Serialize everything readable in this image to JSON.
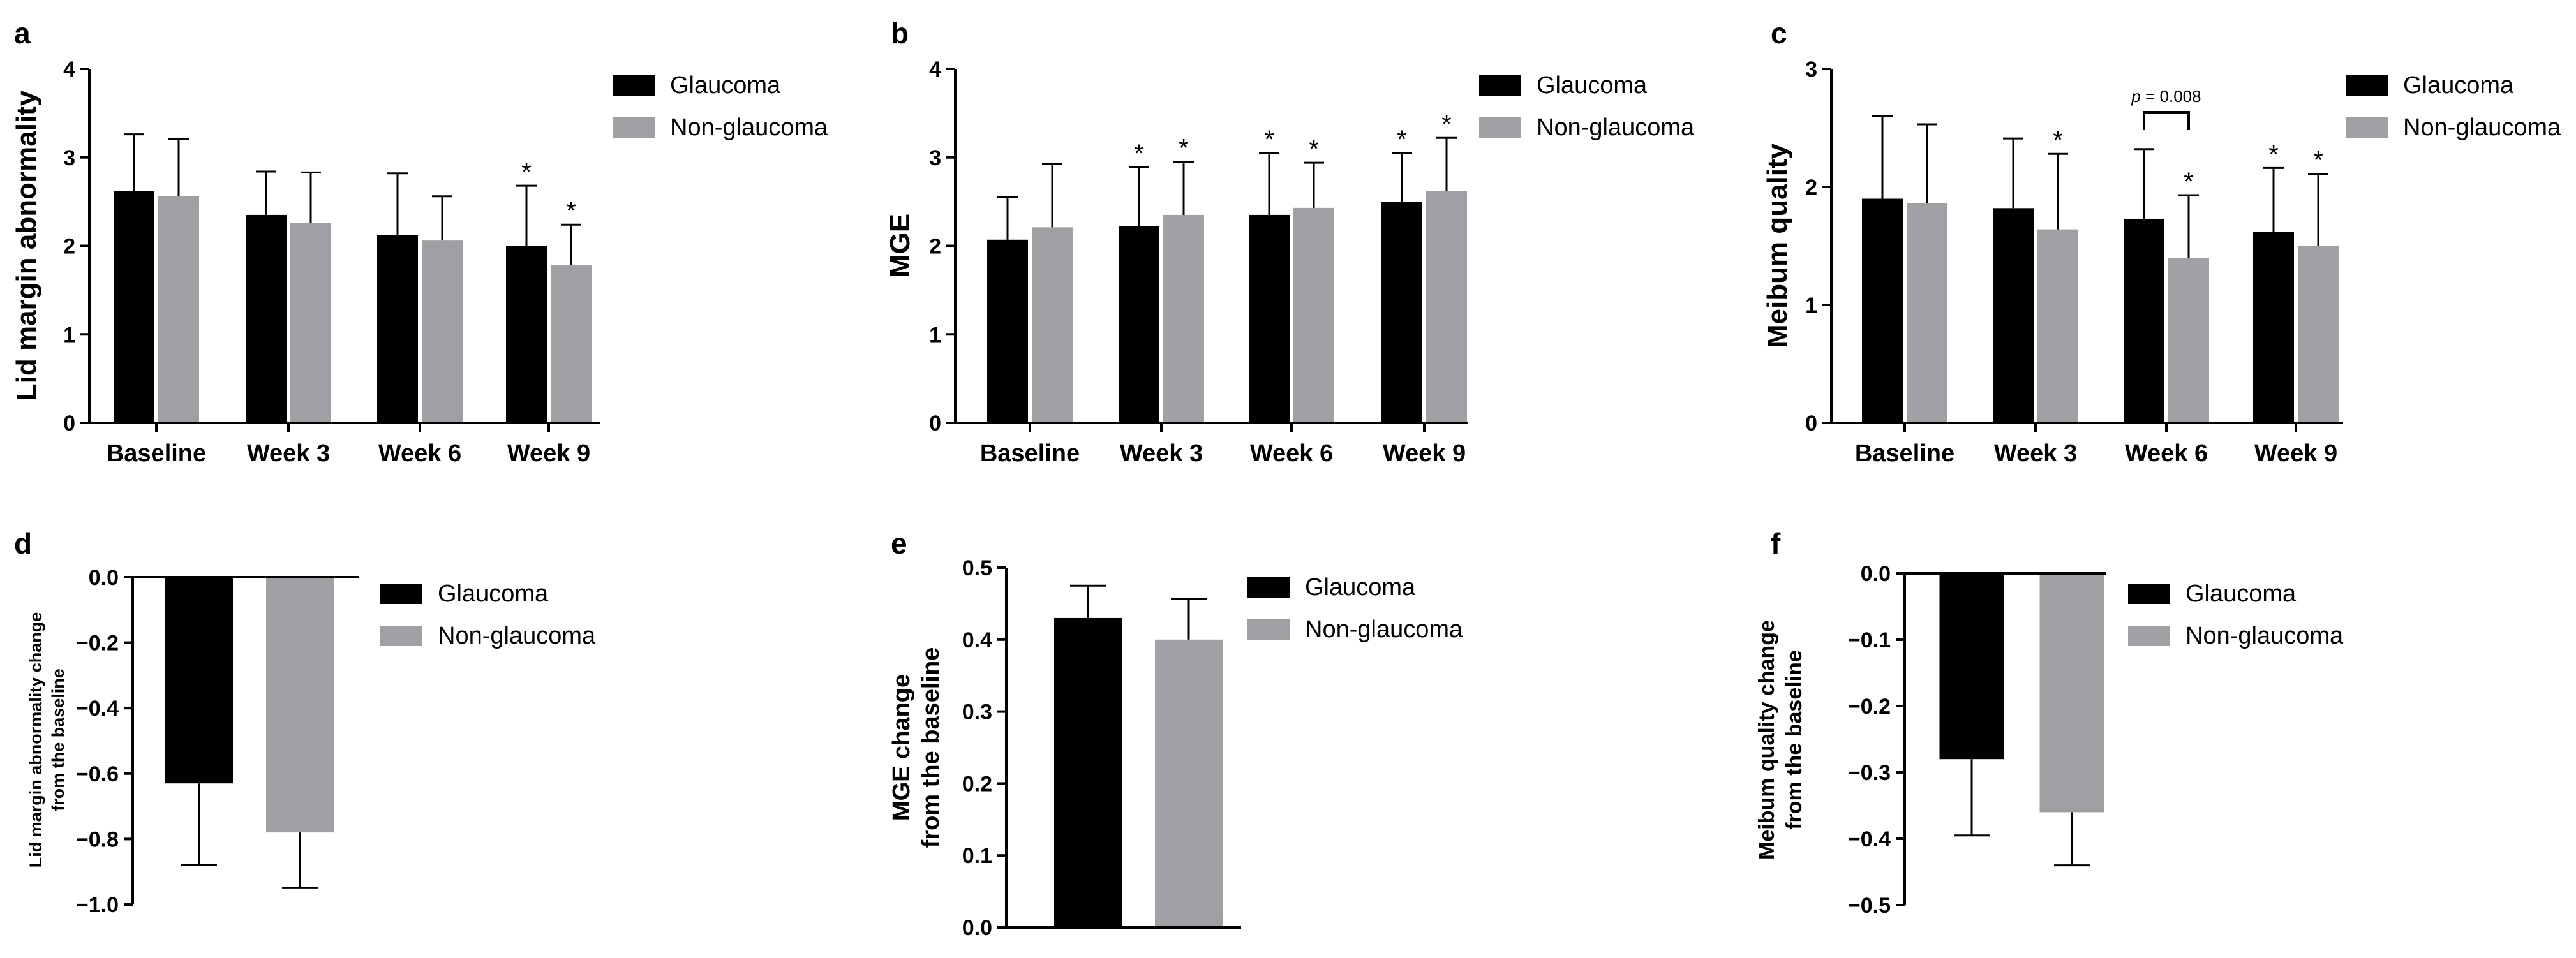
{
  "chart_data": [
    {
      "panel": "a",
      "type": "bar",
      "ylabel": "Lid margin abnormality",
      "categories": [
        "Baseline",
        "Week 3",
        "Week 6",
        "Week 9"
      ],
      "ylim": [
        0,
        4
      ],
      "yticks": [
        "0",
        "1",
        "2",
        "3",
        "4"
      ],
      "legend_position": "top-right",
      "series": [
        {
          "name": "Glaucoma",
          "color": "#000000",
          "values": [
            2.62,
            2.35,
            2.12,
            2.0
          ],
          "errors": [
            0.64,
            0.49,
            0.7,
            0.68
          ],
          "stars": [
            false,
            false,
            false,
            true
          ]
        },
        {
          "name": "Non-glaucoma",
          "color": "#a0a0a4",
          "values": [
            2.56,
            2.26,
            2.06,
            1.78
          ],
          "errors": [
            0.65,
            0.57,
            0.5,
            0.46
          ],
          "stars": [
            false,
            false,
            false,
            true
          ]
        }
      ]
    },
    {
      "panel": "b",
      "type": "bar",
      "ylabel": "MGE",
      "categories": [
        "Baseline",
        "Week 3",
        "Week 6",
        "Week 9"
      ],
      "ylim": [
        0,
        4
      ],
      "yticks": [
        "0",
        "1",
        "2",
        "3",
        "4"
      ],
      "legend_position": "top-right",
      "series": [
        {
          "name": "Glaucoma",
          "color": "#000000",
          "values": [
            2.07,
            2.22,
            2.35,
            2.5
          ],
          "errors": [
            0.48,
            0.67,
            0.7,
            0.55
          ],
          "stars": [
            false,
            true,
            true,
            true
          ]
        },
        {
          "name": "Non-glaucoma",
          "color": "#a0a0a4",
          "values": [
            2.21,
            2.35,
            2.43,
            2.62
          ],
          "errors": [
            0.72,
            0.6,
            0.51,
            0.6
          ],
          "stars": [
            false,
            true,
            true,
            true
          ]
        }
      ]
    },
    {
      "panel": "c",
      "type": "bar",
      "ylabel": "Meibum quality",
      "categories": [
        "Baseline",
        "Week 3",
        "Week 6",
        "Week 9"
      ],
      "ylim": [
        0,
        3
      ],
      "yticks": [
        "0",
        "1",
        "2",
        "3"
      ],
      "legend_position": "top-right",
      "annotation": "p = 0.008",
      "series": [
        {
          "name": "Glaucoma",
          "color": "#000000",
          "values": [
            1.9,
            1.82,
            1.73,
            1.62
          ],
          "errors": [
            0.7,
            0.59,
            0.59,
            0.54
          ],
          "stars": [
            false,
            false,
            false,
            true
          ]
        },
        {
          "name": "Non-glaucoma",
          "color": "#a0a0a4",
          "values": [
            1.86,
            1.64,
            1.4,
            1.5
          ],
          "errors": [
            0.67,
            0.64,
            0.53,
            0.61
          ],
          "stars": [
            false,
            true,
            true,
            true
          ]
        }
      ]
    },
    {
      "panel": "d",
      "type": "bar",
      "ylabel_lines": [
        "Lid margin abnormality change",
        "from the baseline"
      ],
      "categories": [
        "Glaucoma",
        "Non-glaucoma"
      ],
      "ylim": [
        -1.0,
        0.0
      ],
      "yticks": [
        "0.0",
        "-0.2",
        "-0.4",
        "-0.6",
        "-0.8",
        "-1.0"
      ],
      "legend_position": "right",
      "series": [
        {
          "name": "Glaucoma",
          "color": "#000000",
          "value": -0.63,
          "error": 0.25
        },
        {
          "name": "Non-glaucoma",
          "color": "#a0a0a4",
          "value": -0.78,
          "error": 0.17
        }
      ]
    },
    {
      "panel": "e",
      "type": "bar",
      "ylabel_lines": [
        "MGE change",
        "from the baseline"
      ],
      "categories": [
        "Glaucoma",
        "Non-glaucoma"
      ],
      "ylim": [
        0.0,
        0.5
      ],
      "yticks": [
        "0.0",
        "0.1",
        "0.2",
        "0.3",
        "0.4",
        "0.5"
      ],
      "legend_position": "right",
      "series": [
        {
          "name": "Glaucoma",
          "color": "#000000",
          "value": 0.43,
          "error": 0.045
        },
        {
          "name": "Non-glaucoma",
          "color": "#a0a0a4",
          "value": 0.4,
          "error": 0.057
        }
      ]
    },
    {
      "panel": "f",
      "type": "bar",
      "ylabel_lines": [
        "Meibum quality change",
        "from the baseline"
      ],
      "categories": [
        "Glaucoma",
        "Non-glaucoma"
      ],
      "ylim": [
        -0.5,
        0.0
      ],
      "yticks": [
        "0.0",
        "-0.1",
        "-0.2",
        "-0.3",
        "-0.4",
        "-0.5"
      ],
      "legend_position": "right",
      "series": [
        {
          "name": "Glaucoma",
          "color": "#000000",
          "value": -0.28,
          "error": 0.115
        },
        {
          "name": "Non-glaucoma",
          "color": "#a0a0a4",
          "value": -0.36,
          "error": 0.08
        }
      ]
    }
  ]
}
